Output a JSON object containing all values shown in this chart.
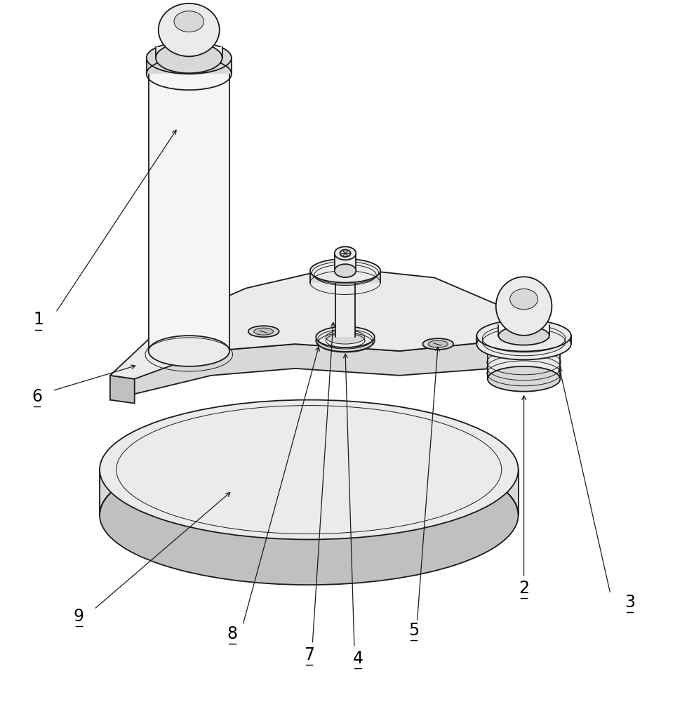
{
  "bg_color": "#ffffff",
  "lc": "#1a1a1a",
  "lw_main": 1.3,
  "lw_thin": 0.7,
  "fc_white": "#f5f5f5",
  "fc_light": "#ebebeb",
  "fc_mid": "#d8d8d8",
  "fc_dark": "#c0c0c0",
  "fc_darker": "#a8a8a8",
  "figsize": [
    9.89,
    10.0
  ],
  "dpi": 100
}
